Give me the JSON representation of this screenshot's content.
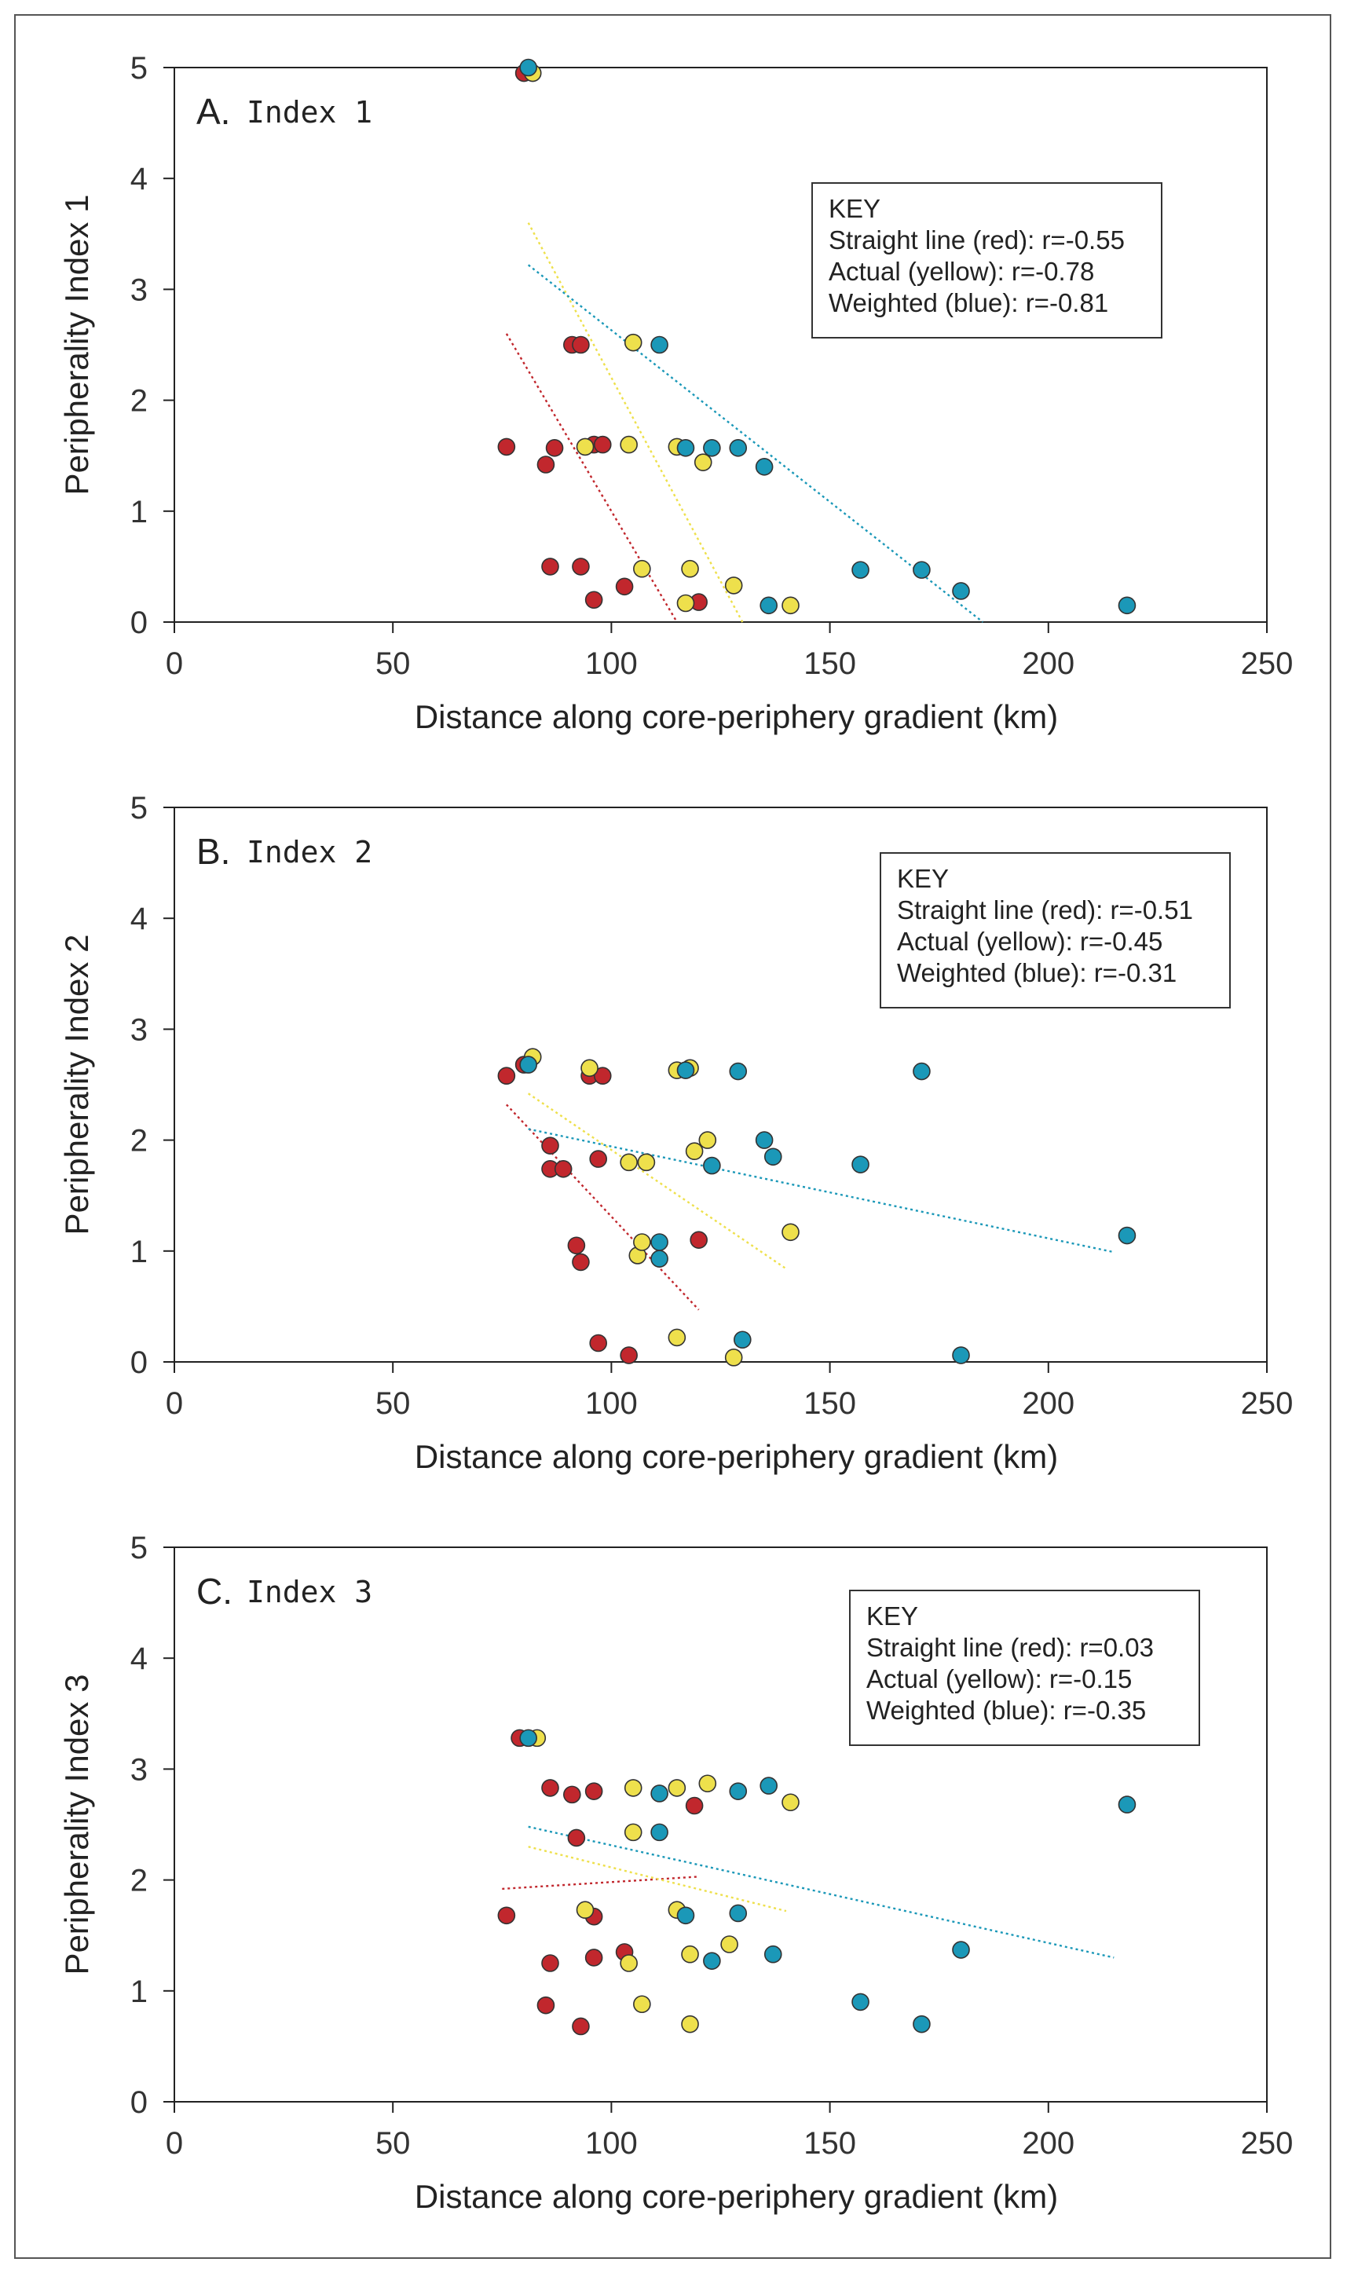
{
  "colors": {
    "straight": "#c1272d",
    "actual": "#eee04c",
    "weighted": "#1b98b8",
    "frame": "#555555"
  },
  "chart_data": [
    {
      "type": "scatter",
      "panel_letter": "A.",
      "panel_name": "Index 1",
      "xlabel": "Distance along core-periphery gradient (km)",
      "ylabel": "Peripherality Index 1",
      "xlim": [
        0,
        250
      ],
      "ylim": [
        0,
        5
      ],
      "xticks": [
        0,
        50,
        100,
        150,
        200,
        250
      ],
      "yticks": [
        0,
        1,
        2,
        3,
        4,
        5
      ],
      "legend": {
        "title": "KEY",
        "entries": [
          "Straight line (red): r=-0.55",
          "Actual (yellow): r=-0.78",
          "Weighted (blue): r=-0.81"
        ]
      },
      "series": [
        {
          "name": "Straight line (red)",
          "color_key": "straight",
          "points": [
            [
              80,
              4.95
            ],
            [
              76,
              1.58
            ],
            [
              85,
              1.42
            ],
            [
              87,
              1.57
            ],
            [
              86,
              0.5
            ],
            [
              91,
              2.5
            ],
            [
              93,
              2.5
            ],
            [
              93,
              0.5
            ],
            [
              96,
              1.6
            ],
            [
              98,
              1.6
            ],
            [
              96,
              0.2
            ],
            [
              103,
              0.32
            ],
            [
              120,
              0.18
            ]
          ],
          "trend": [
            [
              76,
              2.6
            ],
            [
              115,
              0
            ]
          ]
        },
        {
          "name": "Actual (yellow)",
          "color_key": "actual",
          "points": [
            [
              82,
              4.95
            ],
            [
              94,
              1.58
            ],
            [
              104,
              1.6
            ],
            [
              105,
              2.52
            ],
            [
              107,
              0.48
            ],
            [
              115,
              1.58
            ],
            [
              118,
              0.48
            ],
            [
              117,
              0.17
            ],
            [
              121,
              1.44
            ],
            [
              128,
              0.33
            ],
            [
              141,
              0.15
            ]
          ],
          "trend": [
            [
              81,
              3.6
            ],
            [
              130,
              0
            ]
          ]
        },
        {
          "name": "Weighted (blue)",
          "color_key": "weighted",
          "points": [
            [
              81,
              5.0
            ],
            [
              111,
              2.5
            ],
            [
              117,
              1.57
            ],
            [
              123,
              1.57
            ],
            [
              129,
              1.57
            ],
            [
              135,
              1.4
            ],
            [
              136,
              0.15
            ],
            [
              157,
              0.47
            ],
            [
              171,
              0.47
            ],
            [
              180,
              0.28
            ],
            [
              218,
              0.15
            ]
          ],
          "trend": [
            [
              81,
              3.22
            ],
            [
              185,
              0
            ]
          ]
        }
      ]
    },
    {
      "type": "scatter",
      "panel_letter": "B.",
      "panel_name": "Index 2",
      "xlabel": "Distance along core-periphery gradient (km)",
      "ylabel": "Peripherality Index 2",
      "xlim": [
        0,
        250
      ],
      "ylim": [
        0,
        5
      ],
      "xticks": [
        0,
        50,
        100,
        150,
        200,
        250
      ],
      "yticks": [
        0,
        1,
        2,
        3,
        4,
        5
      ],
      "legend": {
        "title": "KEY",
        "entries": [
          "Straight line (red): r=-0.51",
          "Actual (yellow): r=-0.45",
          "Weighted (blue): r=-0.31"
        ]
      },
      "series": [
        {
          "name": "Straight line (red)",
          "color_key": "straight",
          "points": [
            [
              76,
              2.58
            ],
            [
              80,
              2.68
            ],
            [
              86,
              1.95
            ],
            [
              86,
              1.74
            ],
            [
              89,
              1.74
            ],
            [
              92,
              1.05
            ],
            [
              93,
              0.9
            ],
            [
              95,
              2.58
            ],
            [
              97,
              1.83
            ],
            [
              98,
              2.58
            ],
            [
              97,
              0.17
            ],
            [
              104,
              0.06
            ],
            [
              120,
              1.1
            ]
          ],
          "trend": [
            [
              76,
              2.32
            ],
            [
              120,
              0.47
            ]
          ]
        },
        {
          "name": "Actual (yellow)",
          "color_key": "actual",
          "points": [
            [
              82,
              2.75
            ],
            [
              95,
              2.65
            ],
            [
              104,
              1.8
            ],
            [
              106,
              0.96
            ],
            [
              107,
              1.08
            ],
            [
              108,
              1.8
            ],
            [
              115,
              2.63
            ],
            [
              115,
              0.22
            ],
            [
              118,
              2.65
            ],
            [
              119,
              1.9
            ],
            [
              122,
              2.0
            ],
            [
              128,
              0.04
            ],
            [
              141,
              1.17
            ]
          ],
          "trend": [
            [
              81,
              2.42
            ],
            [
              140,
              0.84
            ]
          ]
        },
        {
          "name": "Weighted (blue)",
          "color_key": "weighted",
          "points": [
            [
              81,
              2.68
            ],
            [
              111,
              1.08
            ],
            [
              111,
              0.93
            ],
            [
              117,
              2.63
            ],
            [
              123,
              1.77
            ],
            [
              129,
              2.62
            ],
            [
              130,
              0.2
            ],
            [
              135,
              2.0
            ],
            [
              137,
              1.85
            ],
            [
              157,
              1.78
            ],
            [
              171,
              2.62
            ],
            [
              180,
              0.06
            ],
            [
              218,
              1.14
            ]
          ],
          "trend": [
            [
              81,
              2.1
            ],
            [
              215,
              0.99
            ]
          ]
        }
      ]
    },
    {
      "type": "scatter",
      "panel_letter": "C.",
      "panel_name": "Index 3",
      "xlabel": "Distance along core-periphery gradient (km)",
      "ylabel": "Peripherality Index 3",
      "xlim": [
        0,
        250
      ],
      "ylim": [
        0,
        5
      ],
      "xticks": [
        0,
        50,
        100,
        150,
        200,
        250
      ],
      "yticks": [
        0,
        1,
        2,
        3,
        4,
        5
      ],
      "legend": {
        "title": "KEY",
        "entries": [
          "Straight line (red): r=0.03",
          "Actual (yellow): r=-0.15",
          "Weighted (blue): r=-0.35"
        ]
      },
      "series": [
        {
          "name": "Straight line (red)",
          "color_key": "straight",
          "points": [
            [
              76,
              1.68
            ],
            [
              79,
              3.28
            ],
            [
              85,
              0.87
            ],
            [
              86,
              1.25
            ],
            [
              86,
              2.83
            ],
            [
              91,
              2.77
            ],
            [
              92,
              2.38
            ],
            [
              93,
              0.68
            ],
            [
              96,
              1.67
            ],
            [
              96,
              1.3
            ],
            [
              96,
              2.8
            ],
            [
              103,
              1.35
            ],
            [
              119,
              2.67
            ]
          ],
          "trend": [
            [
              75,
              1.92
            ],
            [
              120,
              2.03
            ]
          ]
        },
        {
          "name": "Actual (yellow)",
          "color_key": "actual",
          "points": [
            [
              83,
              3.28
            ],
            [
              94,
              1.73
            ],
            [
              104,
              1.25
            ],
            [
              105,
              2.43
            ],
            [
              105,
              2.83
            ],
            [
              107,
              0.88
            ],
            [
              115,
              1.73
            ],
            [
              115,
              2.83
            ],
            [
              118,
              1.33
            ],
            [
              118,
              0.7
            ],
            [
              122,
              2.87
            ],
            [
              127,
              1.42
            ],
            [
              141,
              2.7
            ]
          ],
          "trend": [
            [
              81,
              2.3
            ],
            [
              140,
              1.72
            ]
          ]
        },
        {
          "name": "Weighted (blue)",
          "color_key": "weighted",
          "points": [
            [
              81,
              3.28
            ],
            [
              111,
              2.78
            ],
            [
              111,
              2.43
            ],
            [
              117,
              1.68
            ],
            [
              123,
              1.27
            ],
            [
              129,
              1.7
            ],
            [
              129,
              2.8
            ],
            [
              136,
              2.85
            ],
            [
              137,
              1.33
            ],
            [
              157,
              0.9
            ],
            [
              171,
              0.7
            ],
            [
              180,
              1.37
            ],
            [
              218,
              2.68
            ]
          ],
          "trend": [
            [
              81,
              2.48
            ],
            [
              215,
              1.3
            ]
          ]
        }
      ]
    }
  ]
}
